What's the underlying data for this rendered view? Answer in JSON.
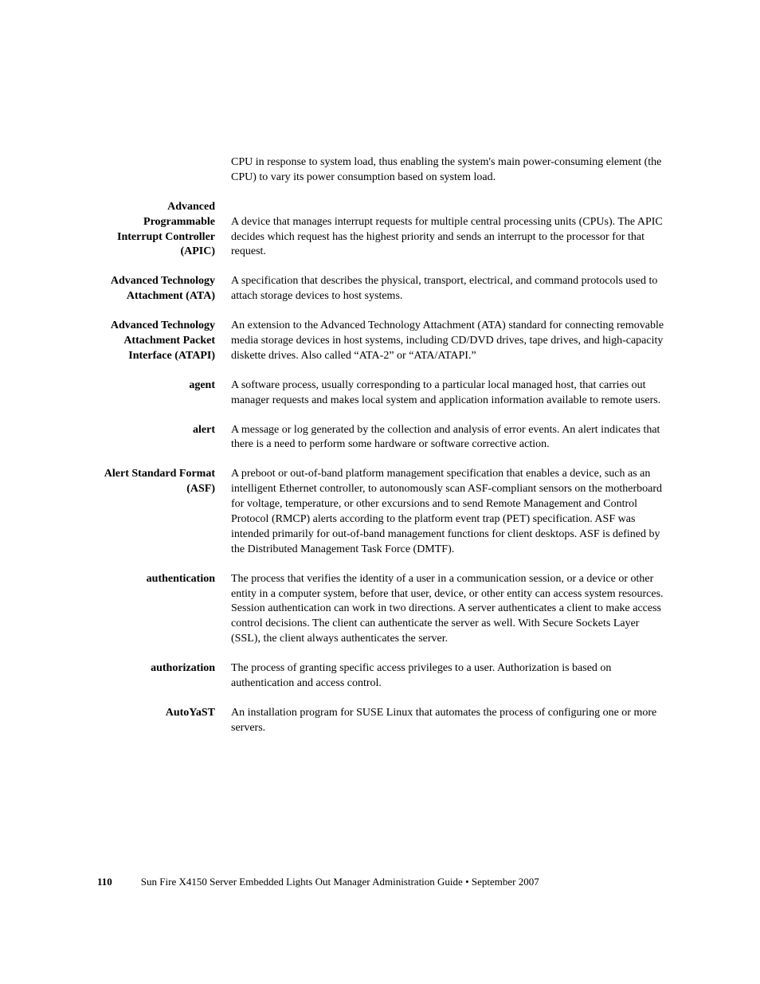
{
  "entries": [
    {
      "term": "",
      "definition": "CPU in response to system load, thus enabling the system's main power-consuming element (the CPU) to vary its power consumption based on system load."
    },
    {
      "term": "Advanced Programmable Interrupt Controller (APIC)",
      "definition": "A device that manages interrupt requests for multiple central processing units (CPUs). The APIC decides which request has the highest priority and sends an interrupt to the processor for that request."
    },
    {
      "term": "Advanced Technology Attachment (ATA)",
      "definition": "A specification that describes the physical, transport, electrical, and command protocols used to attach storage devices to host systems."
    },
    {
      "term": "Advanced Technology Attachment Packet Interface (ATAPI)",
      "definition": "An extension to the Advanced Technology Attachment (ATA) standard for connecting removable media storage devices in host systems, including CD/DVD drives, tape drives, and high-capacity diskette drives. Also called “ATA-2” or “ATA/ATAPI.”"
    },
    {
      "term": "agent",
      "definition": "A software process, usually corresponding to a particular local managed host, that carries out manager requests and makes local system and application information available to remote users."
    },
    {
      "term": "alert",
      "definition": "A message or log generated by the collection and analysis of error events. An alert indicates that there is a need to perform some hardware or software corrective action."
    },
    {
      "term": "Alert Standard Format (ASF)",
      "definition": "A preboot or out-of-band platform management specification that enables a device, such as an intelligent Ethernet controller, to autonomously scan ASF-compliant sensors on the motherboard for voltage, temperature, or other excursions and to send Remote Management and Control Protocol (RMCP) alerts according to the platform event trap (PET) specification. ASF was intended primarily for out-of-band management functions for client desktops. ASF is defined by the Distributed Management Task Force (DMTF)."
    },
    {
      "term": "authentication",
      "definition": "The process that verifies the identity of a user in a communication session, or a device or other entity in a computer system, before that user, device, or other entity can access system resources. Session authentication can work in two directions. A server authenticates a client to make access control decisions. The client can authenticate the server as well. With Secure Sockets Layer (SSL), the client always authenticates the server."
    },
    {
      "term": "authorization",
      "definition": "The process of granting specific access privileges to a user. Authorization is based on authentication and access control."
    },
    {
      "term": "AutoYaST",
      "definition": "An installation program for SUSE Linux that automates the process of configuring one or more servers."
    }
  ],
  "footer": {
    "page_number": "110",
    "text": "Sun Fire X4150 Server Embedded Lights Out Manager Administration Guide • September 2007"
  }
}
